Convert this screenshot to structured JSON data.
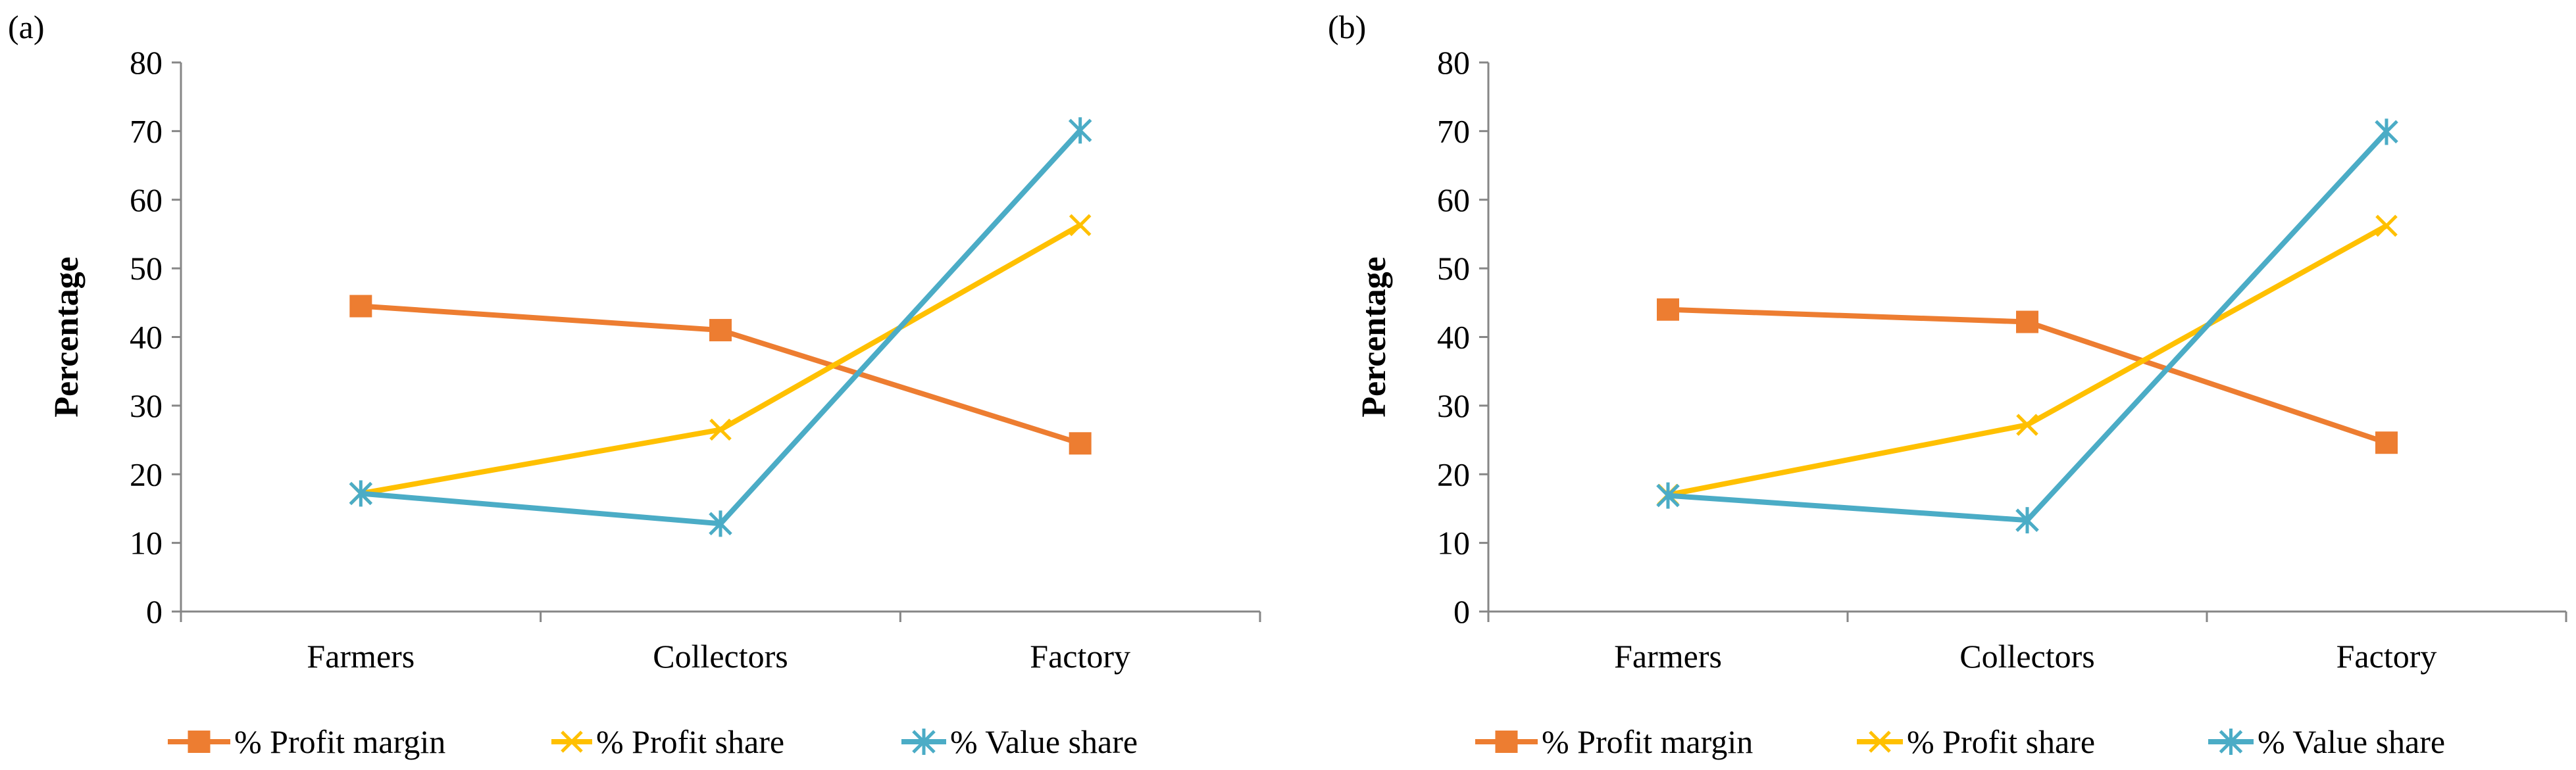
{
  "figure": {
    "panels": [
      "(a)",
      "(b)"
    ]
  },
  "chart_data": [
    {
      "type": "line",
      "panel_label": "(a)",
      "categories": [
        "Farmers",
        "Collectors",
        "Factory"
      ],
      "ylabel": "Percentage",
      "xlabel": "",
      "ylim": [
        0,
        80
      ],
      "yticks": [
        "0",
        "10",
        "20",
        "30",
        "40",
        "50",
        "60",
        "70",
        "80"
      ],
      "grid": false,
      "legend_position": "bottom",
      "series": [
        {
          "name": "% Profit margin",
          "values": [
            44.5,
            41,
            24.5
          ],
          "color": "#ED7D31",
          "marker": "square"
        },
        {
          "name": "% Profit share",
          "values": [
            17.2,
            26.5,
            56.3
          ],
          "color": "#FFC000",
          "marker": "x"
        },
        {
          "name": "% Value share",
          "values": [
            17.2,
            12.8,
            70.1
          ],
          "color": "#4BACC6",
          "marker": "asterisk"
        }
      ]
    },
    {
      "type": "line",
      "panel_label": "(b)",
      "categories": [
        "Farmers",
        "Collectors",
        "Factory"
      ],
      "ylabel": "Percentage",
      "xlabel": "",
      "ylim": [
        0,
        80
      ],
      "yticks": [
        "0",
        "10",
        "20",
        "30",
        "40",
        "50",
        "60",
        "70",
        "80"
      ],
      "grid": false,
      "legend_position": "bottom",
      "series": [
        {
          "name": "% Profit margin",
          "values": [
            44,
            42.2,
            24.6
          ],
          "color": "#ED7D31",
          "marker": "square"
        },
        {
          "name": "% Profit share",
          "values": [
            17,
            27.2,
            56.2
          ],
          "color": "#FFC000",
          "marker": "x"
        },
        {
          "name": "% Value share",
          "values": [
            16.9,
            13.3,
            69.9
          ],
          "color": "#4BACC6",
          "marker": "asterisk"
        }
      ]
    }
  ]
}
